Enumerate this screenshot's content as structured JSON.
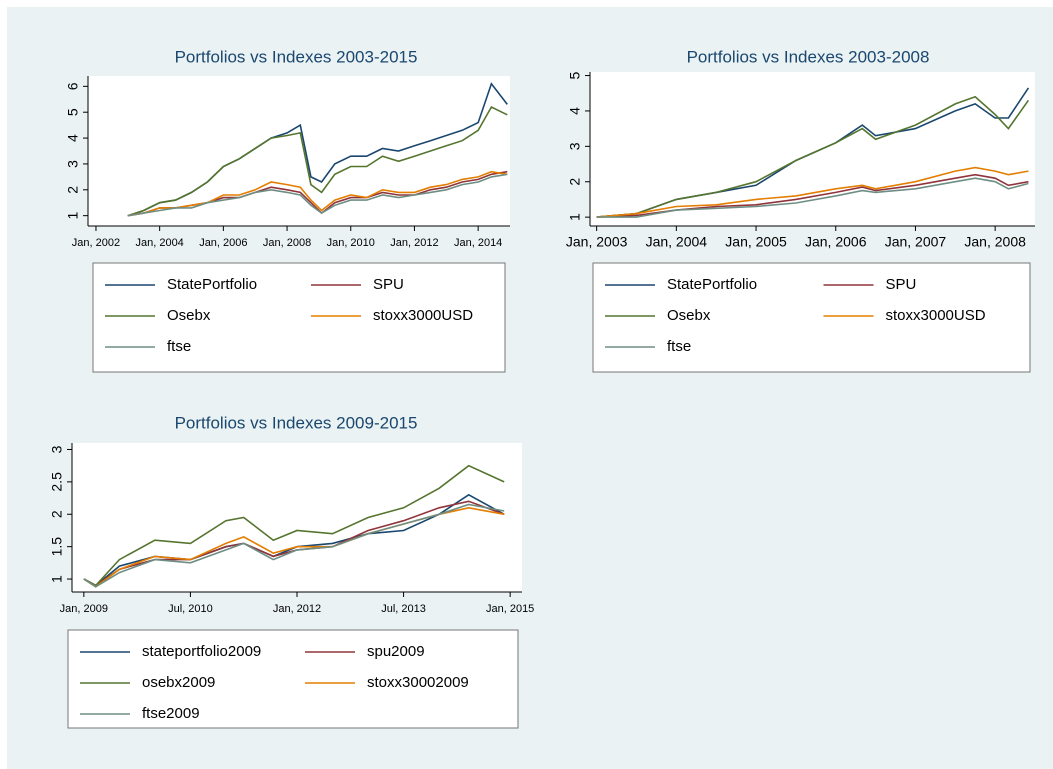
{
  "chart_data": [
    {
      "type": "line",
      "title": "Portfolios vs Indexes 2003-2015",
      "x": [
        "2003-01",
        "2003-07",
        "2004-01",
        "2004-07",
        "2005-01",
        "2005-07",
        "2006-01",
        "2006-07",
        "2007-01",
        "2007-07",
        "2008-01",
        "2008-06",
        "2008-10",
        "2009-02",
        "2009-07",
        "2010-01",
        "2010-07",
        "2011-01",
        "2011-07",
        "2012-01",
        "2012-07",
        "2013-01",
        "2013-07",
        "2014-01",
        "2014-06",
        "2014-12"
      ],
      "series": [
        {
          "name": "StatePortfolio",
          "color": "#1a476f",
          "values": [
            1,
            1.2,
            1.5,
            1.6,
            1.9,
            2.3,
            2.9,
            3.2,
            3.6,
            4.0,
            4.2,
            4.5,
            2.5,
            2.3,
            3.0,
            3.3,
            3.3,
            3.6,
            3.5,
            3.7,
            3.9,
            4.1,
            4.3,
            4.6,
            6.1,
            5.3
          ]
        },
        {
          "name": "SPU",
          "color": "#90353b",
          "values": [
            1,
            1.1,
            1.3,
            1.3,
            1.4,
            1.5,
            1.7,
            1.7,
            1.9,
            2.1,
            2.0,
            1.9,
            1.5,
            1.1,
            1.5,
            1.7,
            1.7,
            1.9,
            1.8,
            1.8,
            2.0,
            2.1,
            2.3,
            2.4,
            2.6,
            2.7
          ]
        },
        {
          "name": "Osebx",
          "color": "#55752f",
          "values": [
            1,
            1.2,
            1.5,
            1.6,
            1.9,
            2.3,
            2.9,
            3.2,
            3.6,
            4.0,
            4.1,
            4.2,
            2.2,
            1.9,
            2.6,
            2.9,
            2.9,
            3.3,
            3.1,
            3.3,
            3.5,
            3.7,
            3.9,
            4.3,
            5.2,
            4.9
          ]
        },
        {
          "name": "stoxx3000USD",
          "color": "#e37e00",
          "values": [
            1,
            1.1,
            1.3,
            1.3,
            1.4,
            1.5,
            1.8,
            1.8,
            2.0,
            2.3,
            2.2,
            2.1,
            1.6,
            1.2,
            1.6,
            1.8,
            1.7,
            2.0,
            1.9,
            1.9,
            2.1,
            2.2,
            2.4,
            2.5,
            2.7,
            2.6
          ]
        },
        {
          "name": "ftse",
          "color": "#6e8e84",
          "values": [
            1,
            1.1,
            1.2,
            1.3,
            1.3,
            1.5,
            1.6,
            1.7,
            1.9,
            2.0,
            1.9,
            1.8,
            1.4,
            1.1,
            1.4,
            1.6,
            1.6,
            1.8,
            1.7,
            1.8,
            1.9,
            2.0,
            2.2,
            2.3,
            2.5,
            2.6
          ]
        }
      ],
      "xlim": [
        "2001-10",
        "2015-01"
      ],
      "xticks": [
        {
          "value": "2002-01",
          "label": "Jan, 2002"
        },
        {
          "value": "2004-01",
          "label": "Jan, 2004"
        },
        {
          "value": "2006-01",
          "label": "Jan, 2006"
        },
        {
          "value": "2008-01",
          "label": "Jan, 2008"
        },
        {
          "value": "2010-01",
          "label": "Jan, 2010"
        },
        {
          "value": "2012-01",
          "label": "Jan, 2012"
        },
        {
          "value": "2014-01",
          "label": "Jan, 2014"
        }
      ],
      "ylim": [
        0.6,
        6.4
      ],
      "yticks": [
        1,
        2,
        3,
        4,
        5,
        6
      ]
    },
    {
      "type": "line",
      "title": "Portfolios vs Indexes 2003-2008",
      "x": [
        "2003-01",
        "2003-07",
        "2004-01",
        "2004-07",
        "2005-01",
        "2005-07",
        "2006-01",
        "2006-05",
        "2006-07",
        "2007-01",
        "2007-07",
        "2007-10",
        "2008-01",
        "2008-03",
        "2008-06"
      ],
      "series": [
        {
          "name": "StatePortfolio",
          "color": "#1a476f",
          "values": [
            1,
            1.1,
            1.5,
            1.7,
            1.9,
            2.6,
            3.1,
            3.6,
            3.3,
            3.5,
            4.0,
            4.2,
            3.8,
            3.8,
            4.65
          ]
        },
        {
          "name": "SPU",
          "color": "#90353b",
          "values": [
            1,
            1.05,
            1.2,
            1.3,
            1.35,
            1.5,
            1.7,
            1.85,
            1.75,
            1.9,
            2.1,
            2.2,
            2.1,
            1.9,
            2.0
          ]
        },
        {
          "name": "Osebx",
          "color": "#55752f",
          "values": [
            1,
            1.1,
            1.5,
            1.7,
            2.0,
            2.6,
            3.1,
            3.5,
            3.2,
            3.6,
            4.2,
            4.4,
            3.9,
            3.5,
            4.3
          ]
        },
        {
          "name": "stoxx3000USD",
          "color": "#e37e00",
          "values": [
            1,
            1.1,
            1.3,
            1.35,
            1.5,
            1.6,
            1.8,
            1.9,
            1.8,
            2.0,
            2.3,
            2.4,
            2.3,
            2.2,
            2.3
          ]
        },
        {
          "name": "ftse",
          "color": "#6e8e84",
          "values": [
            1,
            1.0,
            1.2,
            1.25,
            1.3,
            1.4,
            1.6,
            1.75,
            1.7,
            1.8,
            2.0,
            2.1,
            2.0,
            1.8,
            1.95
          ]
        }
      ],
      "xlim": [
        "2002-12",
        "2008-07"
      ],
      "xticks": [
        {
          "value": "2003-01",
          "label": "Jan, 2003"
        },
        {
          "value": "2004-01",
          "label": "Jan, 2004"
        },
        {
          "value": "2005-01",
          "label": "Jan, 2005"
        },
        {
          "value": "2006-01",
          "label": "Jan, 2006"
        },
        {
          "value": "2007-01",
          "label": "Jan, 2007"
        },
        {
          "value": "2008-01",
          "label": "Jan, 2008"
        }
      ],
      "ylim": [
        0.75,
        5.1
      ],
      "yticks": [
        1,
        2,
        3,
        4,
        5
      ]
    },
    {
      "type": "line",
      "title": "Portfolios vs Indexes 2009-2015",
      "x": [
        "2009-01",
        "2009-03",
        "2009-07",
        "2010-01",
        "2010-07",
        "2011-01",
        "2011-04",
        "2011-09",
        "2012-01",
        "2012-07",
        "2013-01",
        "2013-07",
        "2014-01",
        "2014-06",
        "2014-12"
      ],
      "series": [
        {
          "name": "stateportfolio2009",
          "color": "#1a476f",
          "values": [
            1,
            0.9,
            1.2,
            1.35,
            1.3,
            1.5,
            1.55,
            1.35,
            1.5,
            1.55,
            1.7,
            1.75,
            2.0,
            2.3,
            2.0
          ]
        },
        {
          "name": "spu2009",
          "color": "#90353b",
          "values": [
            1,
            0.9,
            1.15,
            1.3,
            1.3,
            1.5,
            1.55,
            1.35,
            1.45,
            1.5,
            1.75,
            1.9,
            2.1,
            2.2,
            2.0
          ]
        },
        {
          "name": "osebx2009",
          "color": "#55752f",
          "values": [
            1,
            0.9,
            1.3,
            1.6,
            1.55,
            1.9,
            1.95,
            1.6,
            1.75,
            1.7,
            1.95,
            2.1,
            2.4,
            2.75,
            2.5
          ]
        },
        {
          "name": "stoxx30002009",
          "color": "#e37e00",
          "values": [
            1,
            0.88,
            1.15,
            1.35,
            1.3,
            1.55,
            1.65,
            1.4,
            1.5,
            1.5,
            1.7,
            1.85,
            2.0,
            2.1,
            2.0
          ]
        },
        {
          "name": "ftse2009",
          "color": "#6e8e84",
          "values": [
            1,
            0.88,
            1.1,
            1.3,
            1.25,
            1.45,
            1.55,
            1.3,
            1.45,
            1.5,
            1.7,
            1.85,
            2.0,
            2.15,
            2.05
          ]
        }
      ],
      "xlim": [
        "2008-11",
        "2015-03"
      ],
      "xticks": [
        {
          "value": "2009-01",
          "label": "Jan, 2009"
        },
        {
          "value": "2010-07",
          "label": "Jul, 2010"
        },
        {
          "value": "2012-01",
          "label": "Jan, 2012"
        },
        {
          "value": "2013-07",
          "label": "Jul, 2013"
        },
        {
          "value": "2015-01",
          "label": "Jan, 2015"
        }
      ],
      "ylim": [
        0.8,
        3.1
      ],
      "yticks": [
        1,
        1.5,
        2,
        2.5,
        3
      ]
    }
  ]
}
